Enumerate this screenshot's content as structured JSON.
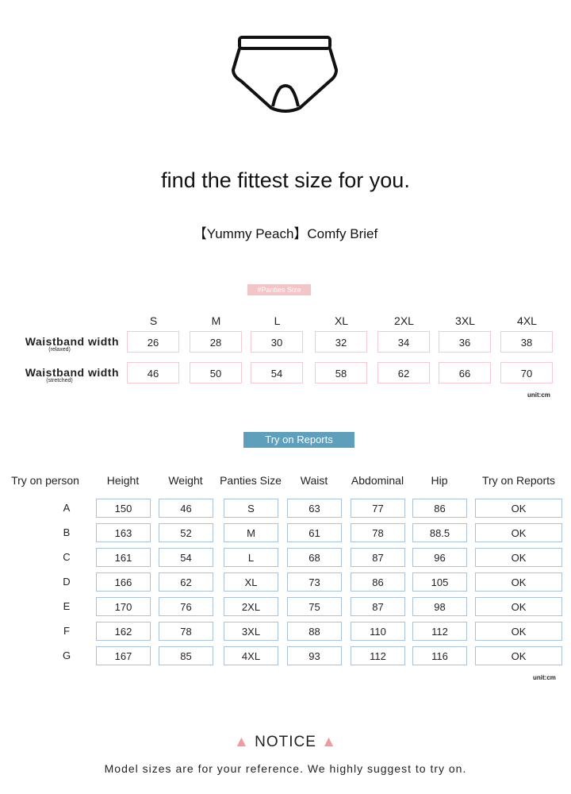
{
  "title": "find the fittest size for you.",
  "product": "【Yummy Peach】Comfy Brief",
  "panties_size": {
    "tag": "#Panties Size",
    "sizes": [
      "S",
      "M",
      "L",
      "XL",
      "2XL",
      "3XL",
      "4XL"
    ],
    "rows": [
      {
        "label": "Waistband width",
        "sub": "(relaxed)",
        "values": [
          "26",
          "28",
          "30",
          "32",
          "34",
          "36",
          "38"
        ]
      },
      {
        "label": "Waistband width",
        "sub": "(stretched)",
        "values": [
          "46",
          "50",
          "54",
          "58",
          "62",
          "66",
          "70"
        ]
      }
    ],
    "unit": "unit:cm"
  },
  "try_on": {
    "tag": "Try on Reports",
    "headers": [
      "Try on person",
      "Height",
      "Weight",
      "Panties Size",
      "Waist",
      "Abdominal",
      "Hip",
      "Try on Reports"
    ],
    "rows": [
      [
        "A",
        "150",
        "46",
        "S",
        "63",
        "77",
        "86",
        "OK"
      ],
      [
        "B",
        "163",
        "52",
        "M",
        "61",
        "78",
        "88.5",
        "OK"
      ],
      [
        "C",
        "161",
        "54",
        "L",
        "68",
        "87",
        "96",
        "OK"
      ],
      [
        "D",
        "166",
        "62",
        "XL",
        "73",
        "86",
        "105",
        "OK"
      ],
      [
        "E",
        "170",
        "76",
        "2XL",
        "75",
        "87",
        "98",
        "OK"
      ],
      [
        "F",
        "162",
        "78",
        "3XL",
        "88",
        "110",
        "112",
        "OK"
      ],
      [
        "G",
        "167",
        "85",
        "4XL",
        "93",
        "112",
        "116",
        "OK"
      ]
    ],
    "unit": "unit:cm"
  },
  "notice": {
    "icon": "warning-icon",
    "label": "NOTICE",
    "text": "Model sizes are for your reference. We highly suggest to try on.",
    "icon_color": "#f29a9a"
  }
}
